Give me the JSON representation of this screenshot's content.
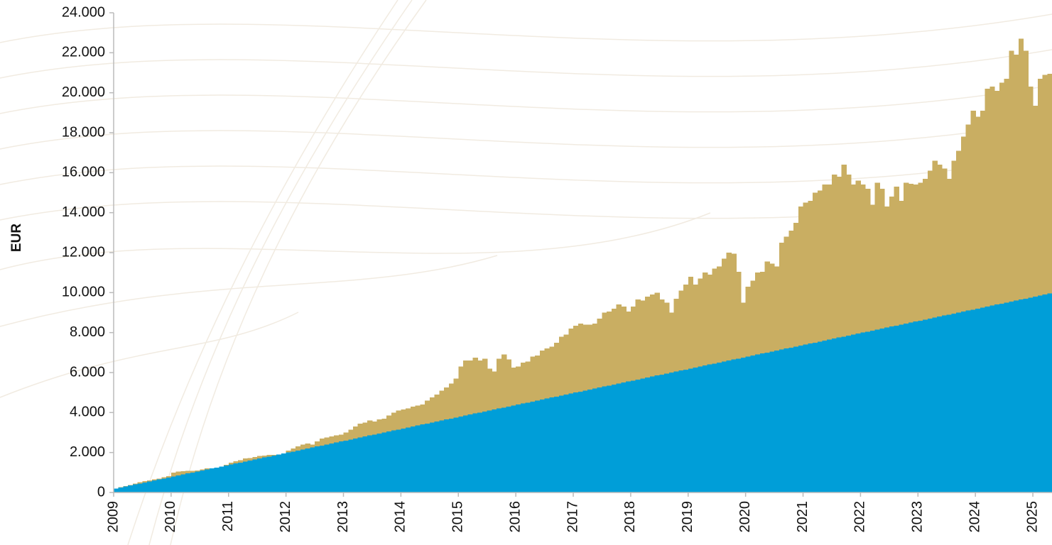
{
  "chart_data": {
    "type": "bar",
    "y_label": "EUR",
    "categories": [
      "2009",
      null,
      null,
      null,
      null,
      null,
      null,
      null,
      null,
      null,
      null,
      null,
      "2010",
      null,
      null,
      null,
      null,
      null,
      null,
      null,
      null,
      null,
      null,
      null,
      "2011",
      null,
      null,
      null,
      null,
      null,
      null,
      null,
      null,
      null,
      null,
      null,
      "2012",
      null,
      null,
      null,
      null,
      null,
      null,
      null,
      null,
      null,
      null,
      null,
      "2013",
      null,
      null,
      null,
      null,
      null,
      null,
      null,
      null,
      null,
      null,
      null,
      "2014",
      null,
      null,
      null,
      null,
      null,
      null,
      null,
      null,
      null,
      null,
      null,
      "2015",
      null,
      null,
      null,
      null,
      null,
      null,
      null,
      null,
      null,
      null,
      null,
      "2016",
      null,
      null,
      null,
      null,
      null,
      null,
      null,
      null,
      null,
      null,
      null,
      "2017",
      null,
      null,
      null,
      null,
      null,
      null,
      null,
      null,
      null,
      null,
      null,
      "2018",
      null,
      null,
      null,
      null,
      null,
      null,
      null,
      null,
      null,
      null,
      null,
      "2019",
      null,
      null,
      null,
      null,
      null,
      null,
      null,
      null,
      null,
      null,
      null,
      "2020",
      null,
      null,
      null,
      null,
      null,
      null,
      null,
      null,
      null,
      null,
      null,
      "2021",
      null,
      null,
      null,
      null,
      null,
      null,
      null,
      null,
      null,
      null,
      null,
      "2022",
      null,
      null,
      null,
      null,
      null,
      null,
      null,
      null,
      null,
      null,
      null,
      "2023",
      null,
      null,
      null,
      null,
      null,
      null,
      null,
      null,
      null,
      null,
      null,
      "2024",
      null,
      null,
      null,
      null,
      null,
      null,
      null,
      null,
      null,
      null,
      null,
      "2025",
      null,
      null,
      null
    ],
    "series": [
      {
        "color": "#c9ae62",
        "values": [
          200,
          260,
          320,
          380,
          450,
          520,
          560,
          600,
          650,
          700,
          760,
          820,
          1000,
          1050,
          1060,
          1080,
          1080,
          1100,
          1150,
          1200,
          1200,
          1250,
          1300,
          1380,
          1500,
          1560,
          1620,
          1700,
          1720,
          1780,
          1820,
          1850,
          1880,
          1880,
          1750,
          1720,
          2100,
          2200,
          2300,
          2400,
          2450,
          2400,
          2550,
          2700,
          2750,
          2800,
          2850,
          2900,
          3000,
          3150,
          3300,
          3450,
          3500,
          3600,
          3550,
          3650,
          3700,
          3850,
          4000,
          4100,
          4150,
          4200,
          4300,
          4350,
          4400,
          4600,
          4750,
          4900,
          5100,
          5250,
          5450,
          5700,
          6300,
          6600,
          6600,
          6750,
          6600,
          6700,
          6200,
          6050,
          6700,
          6900,
          6650,
          6250,
          6300,
          6500,
          6550,
          6800,
          6850,
          7100,
          7200,
          7300,
          7500,
          7800,
          7900,
          8200,
          8350,
          8450,
          8400,
          8400,
          8450,
          8700,
          9000,
          9050,
          9200,
          9400,
          9300,
          9050,
          9300,
          9650,
          9600,
          9800,
          9900,
          10000,
          9650,
          9500,
          9000,
          9700,
          10100,
          10400,
          10800,
          10400,
          10700,
          11000,
          10900,
          11200,
          11300,
          11700,
          12000,
          11950,
          11050,
          9500,
          10300,
          10600,
          11000,
          11050,
          11550,
          11450,
          11300,
          12500,
          12800,
          13100,
          13500,
          14300,
          14500,
          14600,
          15000,
          15100,
          15400,
          15400,
          15900,
          15800,
          16400,
          15900,
          15400,
          15600,
          15400,
          15200,
          14400,
          15500,
          15200,
          14300,
          14800,
          15300,
          14600,
          15500,
          15450,
          15400,
          15500,
          15700,
          16100,
          16600,
          16400,
          16200,
          15700,
          16600,
          17100,
          17800,
          18400,
          19100,
          18800,
          19100,
          20200,
          20300,
          20100,
          20500,
          20700,
          22100,
          21900,
          22700,
          22100,
          20300,
          19350,
          20700,
          20900,
          20950
        ]
      },
      {
        "color": "#009ed8",
        "values": [
          200,
          250,
          300,
          350,
          400,
          450,
          500,
          550,
          600,
          650,
          700,
          750,
          800,
          850,
          900,
          950,
          1000,
          1050,
          1100,
          1150,
          1200,
          1250,
          1300,
          1350,
          1400,
          1450,
          1500,
          1550,
          1600,
          1650,
          1700,
          1750,
          1800,
          1850,
          1900,
          1950,
          2000,
          2050,
          2100,
          2150,
          2200,
          2250,
          2300,
          2350,
          2400,
          2450,
          2500,
          2550,
          2600,
          2650,
          2700,
          2750,
          2800,
          2850,
          2900,
          2950,
          3000,
          3050,
          3100,
          3150,
          3200,
          3250,
          3300,
          3350,
          3400,
          3450,
          3500,
          3550,
          3600,
          3650,
          3700,
          3750,
          3800,
          3850,
          3900,
          3950,
          4000,
          4050,
          4100,
          4150,
          4200,
          4250,
          4300,
          4350,
          4400,
          4450,
          4500,
          4550,
          4600,
          4650,
          4700,
          4750,
          4800,
          4850,
          4900,
          4950,
          5000,
          5050,
          5100,
          5150,
          5200,
          5250,
          5300,
          5350,
          5400,
          5450,
          5500,
          5550,
          5600,
          5650,
          5700,
          5750,
          5800,
          5850,
          5900,
          5950,
          6000,
          6050,
          6100,
          6150,
          6200,
          6250,
          6300,
          6350,
          6400,
          6450,
          6500,
          6550,
          6600,
          6650,
          6700,
          6750,
          6800,
          6850,
          6900,
          6950,
          7000,
          7050,
          7100,
          7150,
          7200,
          7250,
          7300,
          7350,
          7400,
          7450,
          7500,
          7550,
          7600,
          7650,
          7700,
          7750,
          7800,
          7850,
          7900,
          7950,
          8000,
          8050,
          8100,
          8150,
          8200,
          8250,
          8300,
          8350,
          8400,
          8450,
          8500,
          8550,
          8600,
          8650,
          8700,
          8750,
          8800,
          8850,
          8900,
          8950,
          9000,
          9050,
          9100,
          9150,
          9200,
          9250,
          9300,
          9350,
          9400,
          9450,
          9500,
          9550,
          9600,
          9650,
          9700,
          9750,
          9800,
          9850,
          9900,
          9950
        ]
      }
    ],
    "ylim": [
      0,
      24000
    ],
    "yticks": [
      {
        "value": 0,
        "label": "0"
      },
      {
        "value": 2000,
        "label": "2.000"
      },
      {
        "value": 4000,
        "label": "4.000"
      },
      {
        "value": 6000,
        "label": "6.000"
      },
      {
        "value": 8000,
        "label": "8.000"
      },
      {
        "value": 10000,
        "label": "10.000"
      },
      {
        "value": 12000,
        "label": "12.000"
      },
      {
        "value": 14000,
        "label": "14.000"
      },
      {
        "value": 16000,
        "label": "16.000"
      },
      {
        "value": 18000,
        "label": "18.000"
      },
      {
        "value": 20000,
        "label": "20.000"
      },
      {
        "value": 22000,
        "label": "22.000"
      },
      {
        "value": 24000,
        "label": "24.000"
      }
    ],
    "grid": false
  }
}
